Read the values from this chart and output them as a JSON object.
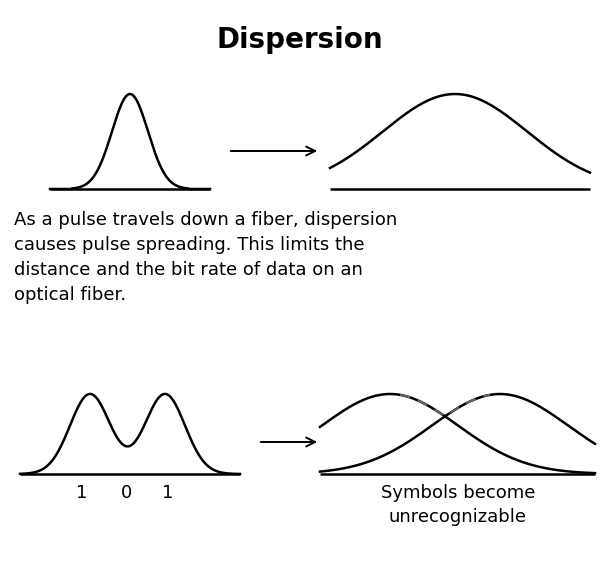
{
  "title": "Dispersion",
  "title_fontsize": 20,
  "title_fontweight": "bold",
  "background_color": "#ffffff",
  "text_color": "#000000",
  "description": "As a pulse travels down a fiber, dispersion\ncauses pulse spreading. This limits the\ndistance and the bit rate of data on an\noptical fiber.",
  "description_fontsize": 13,
  "bottom_label_101": [
    "1",
    "0",
    "1"
  ],
  "bottom_label_right": "Symbols become\nunrecognizable",
  "label_fontsize": 13,
  "line_color": "#000000",
  "dashed_color": "#666666",
  "line_width": 1.8,
  "arrow_lw": 1.4,
  "arrow_mutation_scale": 16
}
